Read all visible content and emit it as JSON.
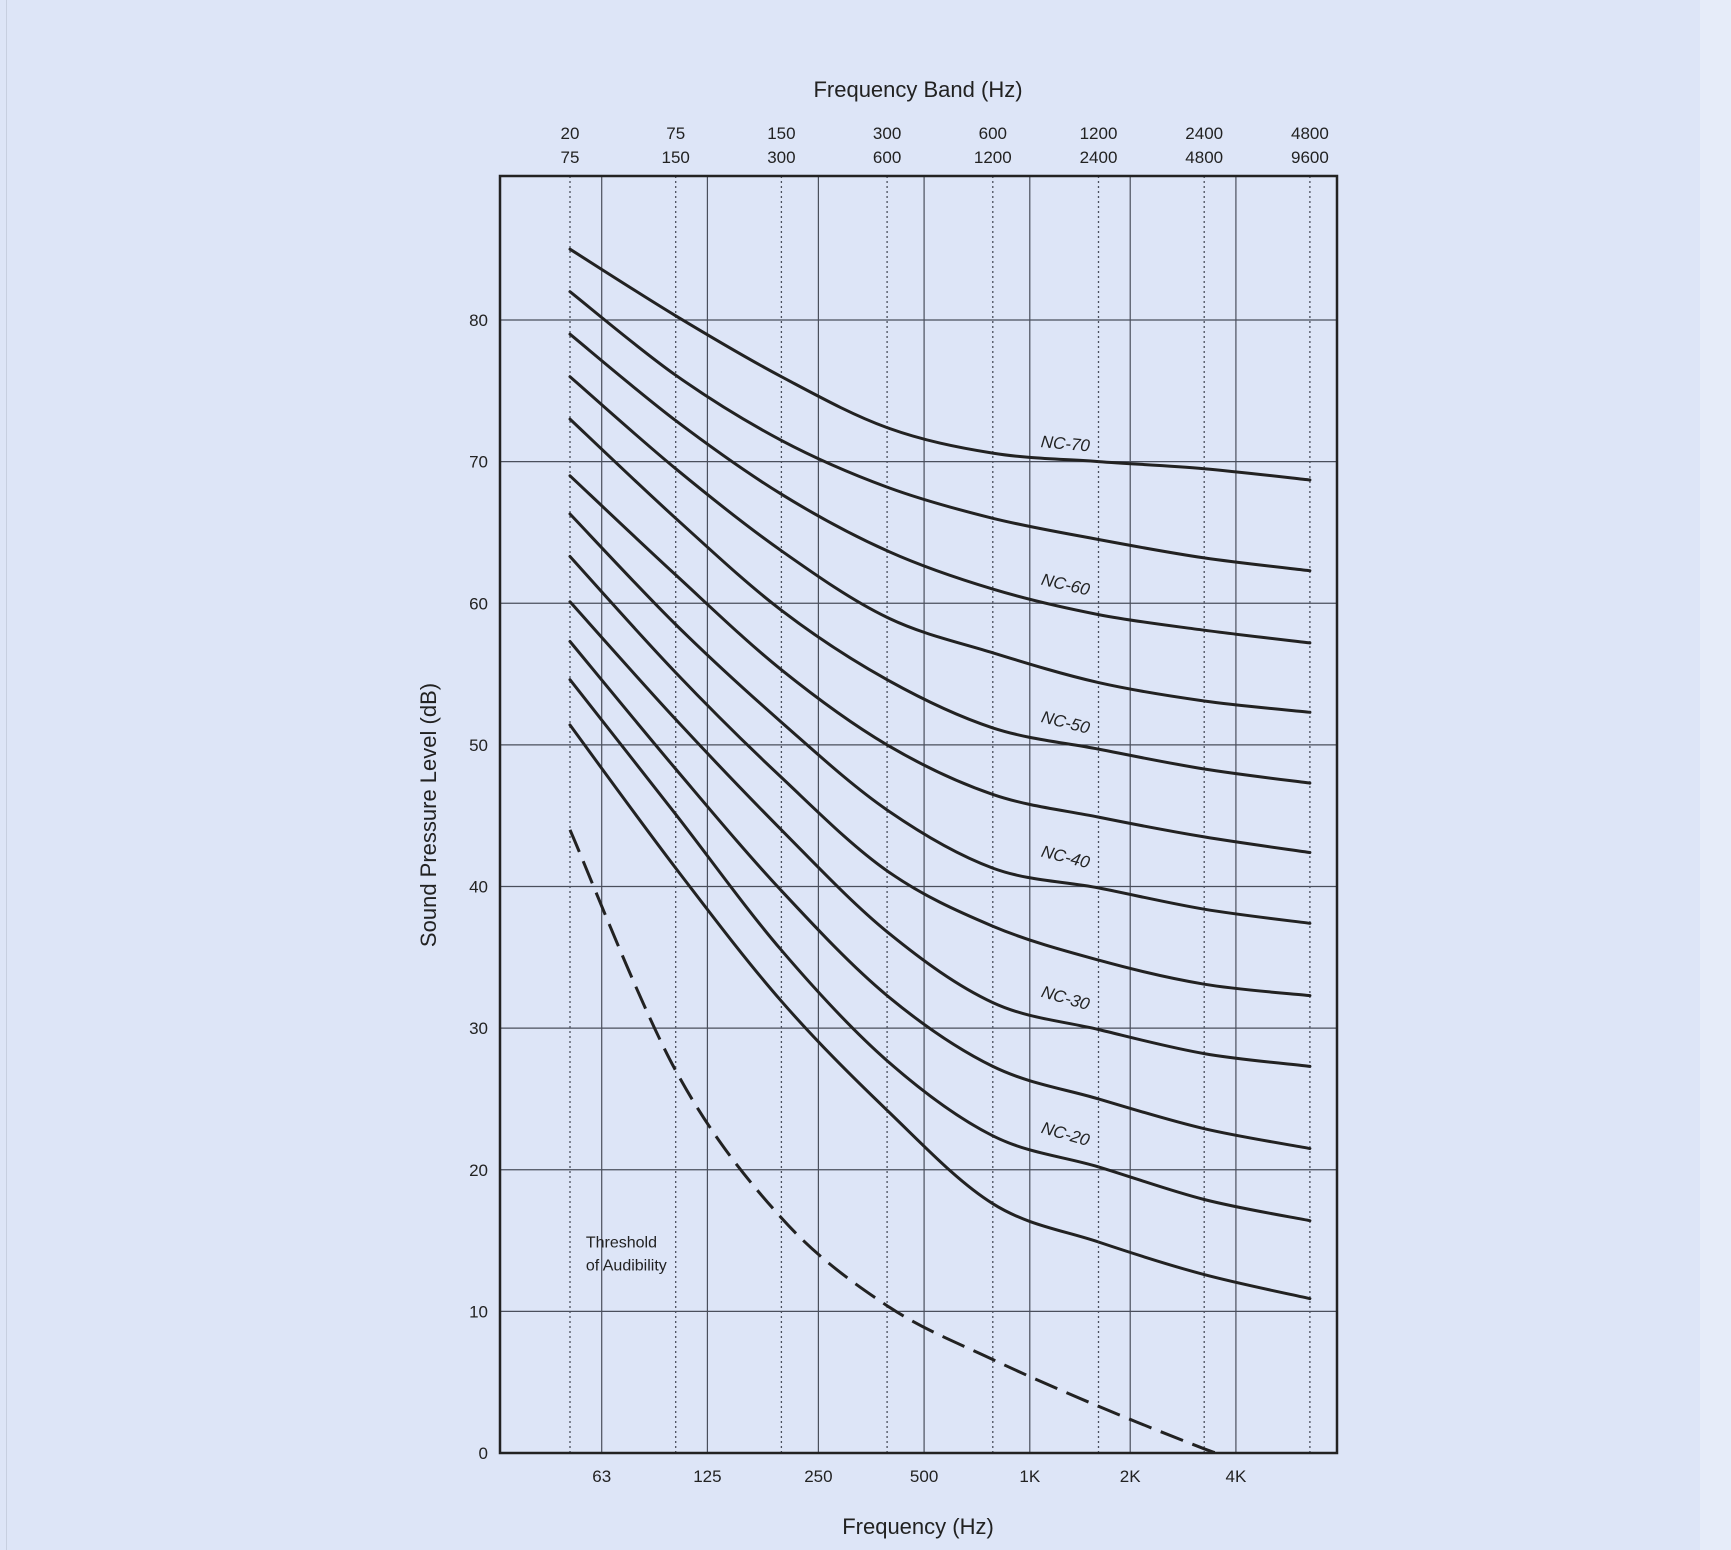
{
  "chart_data": {
    "type": "line",
    "title": "",
    "top_axis_label": "Frequency Band (Hz)",
    "xlabel": "Frequency (Hz)",
    "ylabel": "Sound Pressure Level (dB)",
    "ylim": [
      0,
      90
    ],
    "y_ticks": [
      "0",
      "10",
      "20",
      "30",
      "40",
      "50",
      "60",
      "70",
      "80"
    ],
    "x_ticks": [
      {
        "label": "63",
        "band": 1.3
      },
      {
        "label": "125",
        "band": 2.3
      },
      {
        "label": "250",
        "band": 3.35
      },
      {
        "label": "500",
        "band": 4.35
      },
      {
        "label": "1K",
        "band": 5.35
      },
      {
        "label": "2K",
        "band": 6.3
      },
      {
        "label": "4K",
        "band": 7.3
      }
    ],
    "band_ticks": [
      {
        "top": "20",
        "bottom": "75",
        "band": 1
      },
      {
        "top": "75",
        "bottom": "150",
        "band": 2
      },
      {
        "top": "150",
        "bottom": "300",
        "band": 3
      },
      {
        "top": "300",
        "bottom": "600",
        "band": 4
      },
      {
        "top": "600",
        "bottom": "1200",
        "band": 5
      },
      {
        "top": "1200",
        "bottom": "2400",
        "band": 6
      },
      {
        "top": "2400",
        "bottom": "4800",
        "band": 7
      },
      {
        "top": "4800",
        "bottom": "9600",
        "band": 8
      }
    ],
    "grid": true,
    "series": [
      {
        "name": "NC-70",
        "dashed": false,
        "values": [
          85,
          80.3,
          76,
          72.4,
          70.6,
          70,
          69.5,
          68.7
        ]
      },
      {
        "name": "",
        "dashed": false,
        "values": [
          82,
          76.1,
          71.5,
          68.2,
          66,
          64.5,
          63.2,
          62.3
        ]
      },
      {
        "name": "NC-60",
        "dashed": false,
        "values": [
          79,
          72.9,
          67.7,
          63.7,
          61,
          59.2,
          58.1,
          57.2
        ]
      },
      {
        "name": "",
        "dashed": false,
        "values": [
          76,
          69.5,
          63.7,
          59,
          56.5,
          54.4,
          53.1,
          52.3
        ]
      },
      {
        "name": "NC-50",
        "dashed": false,
        "values": [
          73,
          66,
          59.5,
          54.6,
          51.2,
          49.7,
          48.3,
          47.3
        ]
      },
      {
        "name": "",
        "dashed": false,
        "values": [
          69,
          62,
          55.3,
          50,
          46.5,
          44.9,
          43.5,
          42.4
        ]
      },
      {
        "name": "NC-40",
        "dashed": false,
        "values": [
          66.3,
          58.5,
          51.6,
          45.4,
          41.3,
          39.9,
          38.4,
          37.4
        ]
      },
      {
        "name": "",
        "dashed": false,
        "values": [
          63.3,
          55.1,
          47.7,
          41.1,
          37.2,
          34.8,
          33.1,
          32.3
        ]
      },
      {
        "name": "NC-30",
        "dashed": false,
        "values": [
          60.1,
          51.8,
          44,
          36.8,
          31.8,
          29.9,
          28.2,
          27.3
        ]
      },
      {
        "name": "",
        "dashed": false,
        "values": [
          57.3,
          48.3,
          39.7,
          32.3,
          27.3,
          25,
          22.9,
          21.5
        ]
      },
      {
        "name": "NC-20",
        "dashed": false,
        "values": [
          54.6,
          45.1,
          35.5,
          27.7,
          22.4,
          20.2,
          17.9,
          16.4
        ]
      },
      {
        "name": "",
        "dashed": false,
        "values": [
          51.4,
          41.3,
          31.9,
          24.2,
          17.6,
          14.9,
          12.6,
          10.9
        ]
      },
      {
        "name": "Threshold of Audibility",
        "dashed": true,
        "values": [
          44,
          27,
          16.6,
          10.4,
          6.6,
          3.3,
          0.3,
          null
        ]
      }
    ],
    "curve_labels": [
      {
        "text": "NC-70",
        "band": 5.45,
        "value": 70.6,
        "angle": 5
      },
      {
        "text": "NC-60",
        "band": 5.45,
        "value": 60.9,
        "angle": 13
      },
      {
        "text": "NC-50",
        "band": 5.45,
        "value": 51.2,
        "angle": 14
      },
      {
        "text": "NC-40",
        "band": 5.45,
        "value": 41.7,
        "angle": 14
      },
      {
        "text": "NC-30",
        "band": 5.45,
        "value": 31.8,
        "angle": 16
      },
      {
        "text": "NC-20",
        "band": 5.45,
        "value": 22.2,
        "angle": 16
      }
    ],
    "annotation": {
      "lines": [
        "Threshold",
        "of  Audibility"
      ],
      "band": 1.15,
      "value": 14.5
    }
  },
  "colors": {
    "ink": "#222222",
    "grid": "#4a4f5c",
    "plot_background": "#dde5f7"
  }
}
